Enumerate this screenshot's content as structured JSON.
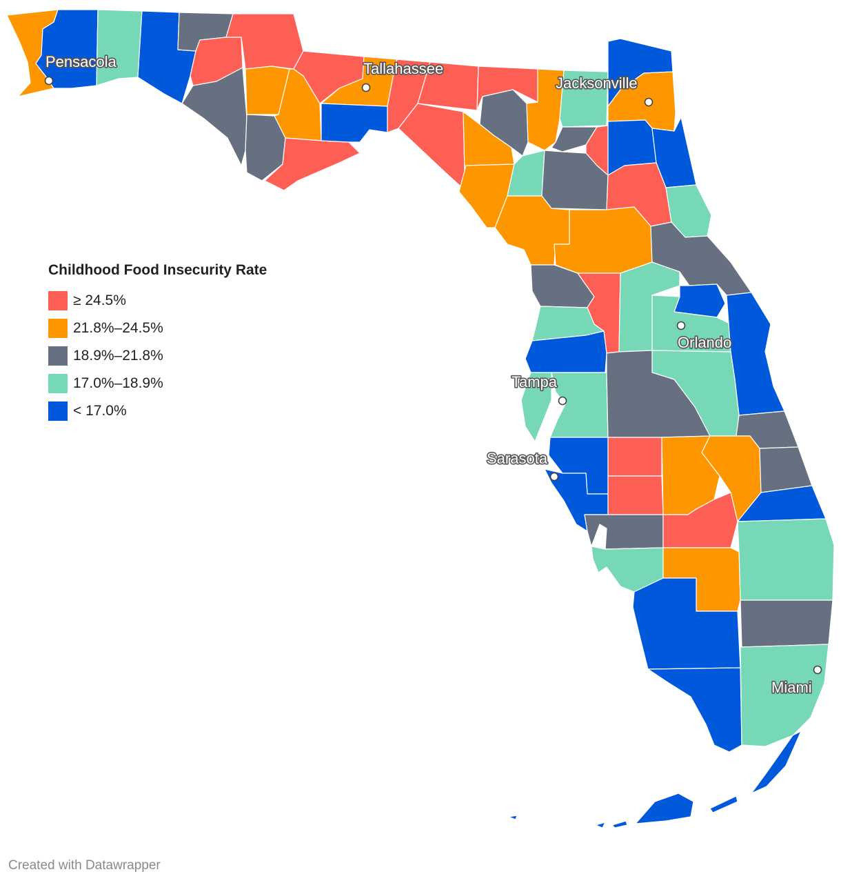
{
  "legend": {
    "title": "Childhood Food Insecurity Rate",
    "bins": [
      {
        "label": "≥ 24.5%",
        "color": "#fe5f55"
      },
      {
        "label": "21.8%–24.5%",
        "color": "#fe9600"
      },
      {
        "label": "18.9%–21.8%",
        "color": "#667080"
      },
      {
        "label": "17.0%–18.9%",
        "color": "#76d8b7"
      },
      {
        "label": "< 17.0%",
        "color": "#0058db"
      }
    ]
  },
  "cities": {
    "pensacola": "Pensacola",
    "tallahassee": "Tallahassee",
    "jacksonville": "Jacksonville",
    "orlando": "Orlando",
    "tampa": "Tampa",
    "sarasota": "Sarasota",
    "miami": "Miami"
  },
  "footer": {
    "credit": "Created with Datawrapper"
  }
}
